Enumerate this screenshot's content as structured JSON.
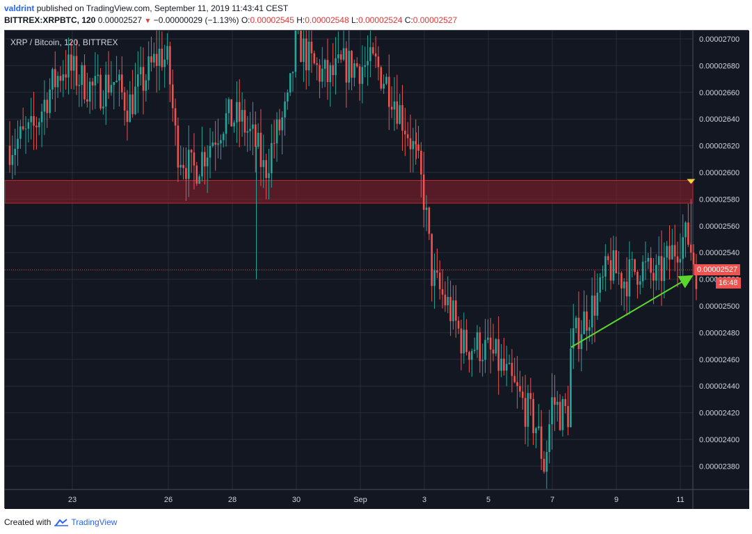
{
  "header": {
    "author": "valdrint",
    "published_text": "published on TradingView.com, September 11, 2019 11:43:41 CEST",
    "symbol": "BITTREX:XRPBTC, 120",
    "last_price": "0.00002527",
    "change_arrow": "▼",
    "change": "−0.00000029 (−1.13%)",
    "o_label": "O:",
    "o_value": "0.00002545",
    "h_label": "H:",
    "h_value": "0.00002548",
    "l_label": "L:",
    "l_value": "0.00002524",
    "c_label": "C:",
    "c_value": "0.00002527"
  },
  "plot_title": "XRP / Bitcoin, 120, BITTREX",
  "current_price_tag": "0.00002527",
  "countdown_tag": "16:48",
  "footer": {
    "created_with": "Created with",
    "brand": "TradingView"
  },
  "colors": {
    "background": "#131722",
    "grid": "#2a2e39",
    "up": "#26a69a",
    "down": "#ef5350",
    "zone_fill": "#8e1f2a",
    "zone_border": "#c62828",
    "trendline": "#5cd62e",
    "marker": "#f5d33a",
    "axis_text": "#d1d4dc",
    "price_tag": "#ef5350"
  },
  "chart_data": {
    "type": "candlestick",
    "title": "XRP / Bitcoin, 120, BITTREX",
    "xlabel": "",
    "ylabel": "",
    "x_tick_labels": [
      "23",
      "26",
      "28",
      "30",
      "Sep",
      "3",
      "5",
      "7",
      "9",
      "11"
    ],
    "y_tick_labels": [
      "0.00002700",
      "0.00002680",
      "0.00002660",
      "0.00002640",
      "0.00002620",
      "0.00002600",
      "0.00002580",
      "0.00002560",
      "0.00002540",
      "0.00002520",
      "0.00002500",
      "0.00002480",
      "0.00002460",
      "0.00002440",
      "0.00002420",
      "0.00002400",
      "0.00002380"
    ],
    "ylim": [
      2.37e-05,
      2.7e-05
    ],
    "x_range": [
      "2019-08-21",
      "2019-09-11"
    ],
    "grid": true,
    "resistance_zone": {
      "low": 2.577e-05,
      "high": 2.594e-05
    },
    "trendline": {
      "from": {
        "x": "2019-09-07 14:00",
        "y": 2.469e-05
      },
      "to": {
        "x": "2019-09-11 08:00",
        "y": 2.522e-05
      }
    },
    "current_price": 2.527e-05,
    "price_path": [
      [
        "2019-08-21 00:00",
        2.62e-05
      ],
      [
        "2019-08-21 18:00",
        2.63e-05
      ],
      [
        "2019-08-22 06:00",
        2.66e-05
      ],
      [
        "2019-08-22 18:00",
        2.68e-05
      ],
      [
        "2019-08-23 06:00",
        2.67e-05
      ],
      [
        "2019-08-23 18:00",
        2.66e-05
      ],
      [
        "2019-08-24 06:00",
        2.67e-05
      ],
      [
        "2019-08-24 18:00",
        2.65e-05
      ],
      [
        "2019-08-25 06:00",
        2.67e-05
      ],
      [
        "2019-08-25 18:00",
        2.69e-05
      ],
      [
        "2019-08-26 00:00",
        2.68e-05
      ],
      [
        "2019-08-26 06:00",
        2.62e-05
      ],
      [
        "2019-08-26 18:00",
        2.6e-05
      ],
      [
        "2019-08-27 06:00",
        2.62e-05
      ],
      [
        "2019-08-27 18:00",
        2.64e-05
      ],
      [
        "2019-08-28 06:00",
        2.64e-05
      ],
      [
        "2019-08-28 18:00",
        2.62e-05
      ],
      [
        "2019-08-29 00:00",
        2.6e-05
      ],
      [
        "2019-08-29 06:00",
        2.62e-05
      ],
      [
        "2019-08-29 18:00",
        2.65e-05
      ],
      [
        "2019-08-30 00:00",
        2.7e-05
      ],
      [
        "2019-08-30 12:00",
        2.68e-05
      ],
      [
        "2019-08-31 00:00",
        2.67e-05
      ],
      [
        "2019-08-31 12:00",
        2.68e-05
      ],
      [
        "2019-09-01 00:00",
        2.68e-05
      ],
      [
        "2019-09-01 12:00",
        2.68e-05
      ],
      [
        "2019-09-02 00:00",
        2.66e-05
      ],
      [
        "2019-09-02 12:00",
        2.63e-05
      ],
      [
        "2019-09-02 18:00",
        2.61e-05
      ],
      [
        "2019-09-03 00:00",
        2.58e-05
      ],
      [
        "2019-09-03 06:00",
        2.52e-05
      ],
      [
        "2019-09-03 18:00",
        2.5e-05
      ],
      [
        "2019-09-04 06:00",
        2.47e-05
      ],
      [
        "2019-09-04 18:00",
        2.47e-05
      ],
      [
        "2019-09-05 06:00",
        2.46e-05
      ],
      [
        "2019-09-05 18:00",
        2.44e-05
      ],
      [
        "2019-09-06 06:00",
        2.42e-05
      ],
      [
        "2019-09-06 12:00",
        2.41e-05
      ],
      [
        "2019-09-06 18:00",
        2.38e-05
      ],
      [
        "2019-09-07 00:00",
        2.43e-05
      ],
      [
        "2019-09-07 06:00",
        2.42e-05
      ],
      [
        "2019-09-07 12:00",
        2.42e-05
      ],
      [
        "2019-09-07 14:00",
        2.47e-05
      ],
      [
        "2019-09-08 00:00",
        2.49e-05
      ],
      [
        "2019-09-08 12:00",
        2.51e-05
      ],
      [
        "2019-09-08 18:00",
        2.53e-05
      ],
      [
        "2019-09-09 06:00",
        2.52e-05
      ],
      [
        "2019-09-09 18:00",
        2.53e-05
      ],
      [
        "2019-09-10 06:00",
        2.52e-05
      ],
      [
        "2019-09-10 18:00",
        2.54e-05
      ],
      [
        "2019-09-11 00:00",
        2.55e-05
      ],
      [
        "2019-09-11 06:00",
        2.55e-05
      ],
      [
        "2019-09-11 12:00",
        2.527e-05
      ]
    ],
    "wick_spikes": [
      {
        "x": "2019-08-28 18:00",
        "low": 2.52e-05
      },
      {
        "x": "2019-09-02 18:00",
        "high": 2.63e-05
      },
      {
        "x": "2019-09-11 08:00",
        "high": 2.58e-05
      }
    ]
  }
}
